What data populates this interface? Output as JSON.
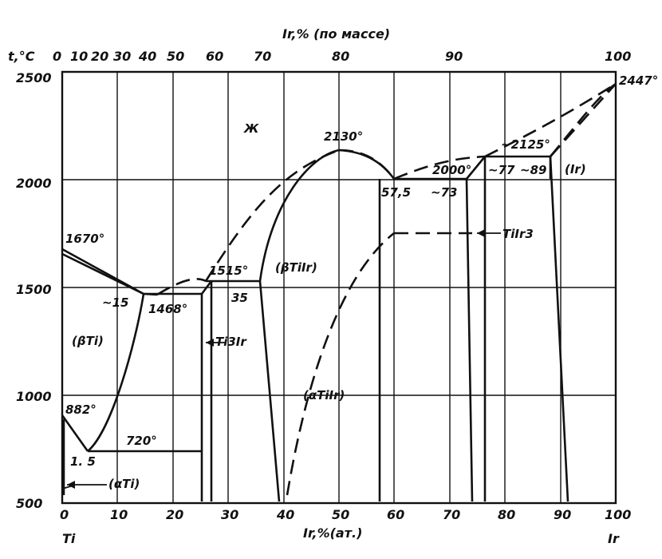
{
  "chart_data": {
    "type": "phase-diagram",
    "system": "Ti-Ir",
    "y_axis": {
      "label": "t,°C",
      "ticks": [
        "2500",
        "2000",
        "1500",
        "1000",
        "500"
      ],
      "ylim": [
        500,
        2500
      ]
    },
    "x_axis_bottom": {
      "label": "Ir,%(ат.)",
      "ticks": [
        "0",
        "10",
        "20",
        "30",
        "40",
        "50",
        "60",
        "70",
        "80",
        "90",
        "100"
      ],
      "xlim": [
        0,
        100
      ],
      "left_end": "Ti",
      "right_end": "Ir"
    },
    "x_axis_top": {
      "label": "Ir,% (по массе)",
      "ticks": [
        "0",
        "10",
        "20",
        "30",
        "40",
        "50",
        "60",
        "70",
        "80",
        "90",
        "100"
      ]
    },
    "temperature_labels": [
      "2447°",
      "2130°",
      "~2125°",
      "2000°",
      "1670°",
      "1515°",
      "1468°",
      "882°",
      "720°"
    ],
    "composition_labels": [
      "~15",
      "35",
      "57,5",
      "~73",
      "~77",
      "~89",
      "1. 5"
    ],
    "phase_labels": [
      "Ж",
      "(βTi)",
      "(αTi)",
      "Ti3Ir",
      "(βTiIr)",
      "(αTiIr)",
      "TiIr3",
      "(Ir)"
    ],
    "invariant_points": [
      {
        "t": 2447,
        "ir": 100
      },
      {
        "t": 2130,
        "ir": 50
      },
      {
        "t": 2125,
        "ir": 77
      },
      {
        "t": 2000,
        "ir": 57.5
      },
      {
        "t": 2000,
        "ir": 73
      },
      {
        "t": 1670,
        "ir": 0
      },
      {
        "t": 1515,
        "ir": 26
      },
      {
        "t": 1468,
        "ir": 15
      },
      {
        "t": 882,
        "ir": 0
      },
      {
        "t": 720,
        "ir": 5
      }
    ],
    "grid": true
  }
}
